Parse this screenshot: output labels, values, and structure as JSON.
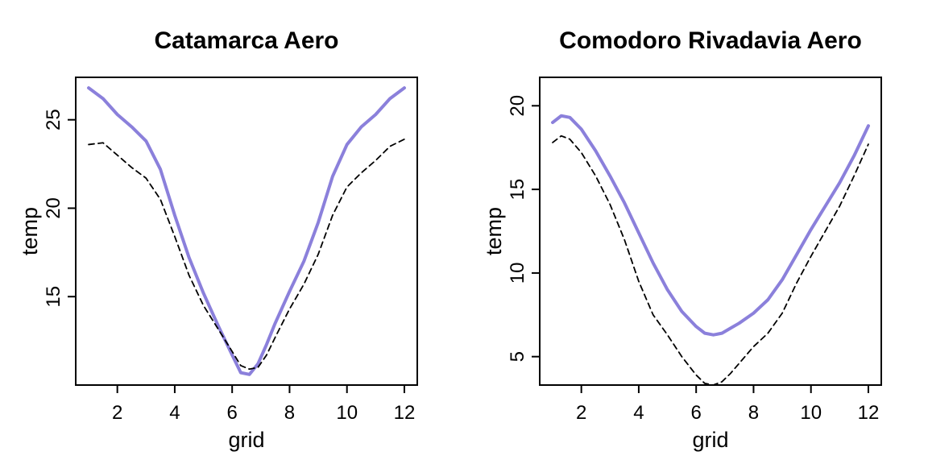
{
  "chart_data": [
    {
      "type": "line",
      "title": "Catamarca Aero",
      "xlabel": "grid",
      "ylabel": "temp",
      "xlim": [
        0.55,
        12.45
      ],
      "ylim": [
        10.0,
        27.4
      ],
      "xticks": [
        2,
        4,
        6,
        8,
        10,
        12
      ],
      "yticks": [
        15,
        20,
        25
      ],
      "grid": false,
      "legend": "none",
      "series": [
        {
          "style": "solid",
          "color": "#8B80DB",
          "x": [
            1,
            1.5,
            2,
            2.5,
            3,
            3.5,
            4,
            4.5,
            5,
            5.5,
            6,
            6.3,
            6.6,
            6.9,
            7.2,
            7.5,
            8,
            8.5,
            9,
            9.5,
            10,
            10.5,
            11,
            11.5,
            12
          ],
          "y": [
            26.8,
            26.2,
            25.3,
            24.6,
            23.8,
            22.2,
            19.6,
            17.2,
            15.2,
            13.4,
            11.7,
            10.7,
            10.6,
            11.2,
            12.3,
            13.5,
            15.3,
            17.0,
            19.2,
            21.8,
            23.6,
            24.6,
            25.3,
            26.2,
            26.8
          ]
        },
        {
          "style": "dashed",
          "color": "#000000",
          "x": [
            1,
            1.5,
            2,
            2.5,
            3,
            3.5,
            4,
            4.5,
            5,
            5.5,
            6,
            6.3,
            6.6,
            6.9,
            7.2,
            7.5,
            8,
            8.5,
            9,
            9.5,
            10,
            10.5,
            11,
            11.5,
            12
          ],
          "y": [
            23.6,
            23.7,
            23.0,
            22.3,
            21.7,
            20.5,
            18.4,
            16.2,
            14.5,
            13.2,
            11.9,
            11.1,
            10.9,
            11.0,
            11.7,
            12.7,
            14.3,
            15.7,
            17.4,
            19.6,
            21.2,
            22.0,
            22.7,
            23.5,
            23.9
          ]
        }
      ]
    },
    {
      "type": "line",
      "title": "Comodoro Rivadavia Aero",
      "xlabel": "grid",
      "ylabel": "temp",
      "xlim": [
        0.55,
        12.45
      ],
      "ylim": [
        3.3,
        21.7
      ],
      "xticks": [
        2,
        4,
        6,
        8,
        10,
        12
      ],
      "yticks": [
        5,
        10,
        15,
        20
      ],
      "grid": false,
      "legend": "none",
      "series": [
        {
          "style": "solid",
          "color": "#8B80DB",
          "x": [
            1,
            1.3,
            1.6,
            2,
            2.5,
            3,
            3.5,
            4,
            4.5,
            5,
            5.5,
            6,
            6.3,
            6.6,
            6.9,
            7.2,
            7.5,
            8,
            8.5,
            9,
            9.5,
            10,
            10.5,
            11,
            11.5,
            12
          ],
          "y": [
            19.0,
            19.4,
            19.3,
            18.6,
            17.3,
            15.8,
            14.2,
            12.4,
            10.6,
            9.0,
            7.7,
            6.8,
            6.4,
            6.3,
            6.4,
            6.7,
            7.0,
            7.6,
            8.4,
            9.6,
            11.1,
            12.6,
            14.0,
            15.4,
            17.0,
            18.8
          ]
        },
        {
          "style": "dashed",
          "color": "#000000",
          "x": [
            1,
            1.3,
            1.6,
            2,
            2.5,
            3,
            3.5,
            4,
            4.5,
            5,
            5.5,
            6,
            6.3,
            6.6,
            6.9,
            7.2,
            7.5,
            8,
            8.5,
            9,
            9.5,
            10,
            10.5,
            11,
            11.5,
            12
          ],
          "y": [
            17.8,
            18.2,
            18.0,
            17.2,
            15.8,
            14.1,
            12.0,
            9.5,
            7.5,
            6.3,
            5.0,
            3.9,
            3.4,
            3.3,
            3.5,
            4.0,
            4.6,
            5.6,
            6.4,
            7.6,
            9.4,
            11.0,
            12.5,
            14.0,
            15.8,
            17.7
          ]
        }
      ]
    }
  ]
}
